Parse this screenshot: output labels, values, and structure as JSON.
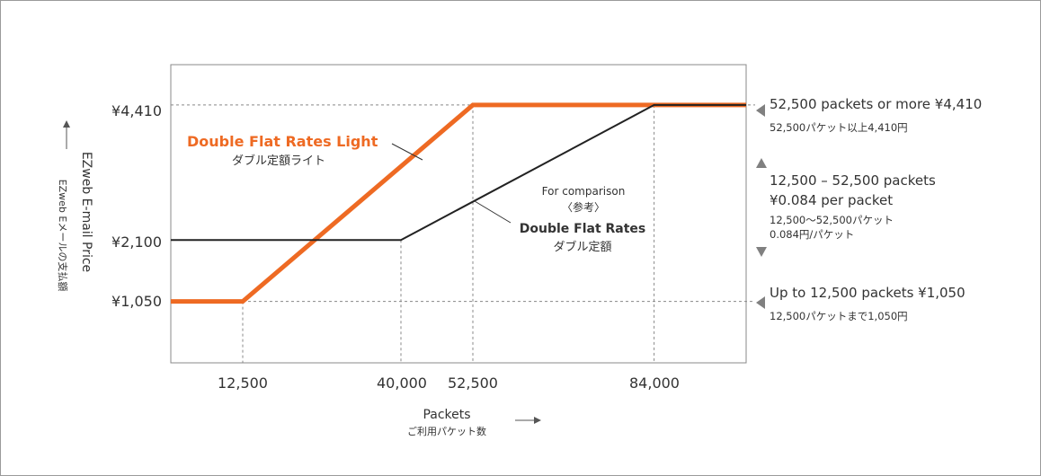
{
  "chart_data": {
    "type": "line",
    "x_axis": {
      "label": "Packets",
      "sublabel": "ご利用パケット数",
      "range": [
        0,
        100000
      ],
      "tick_labels": [
        "12,500",
        "40,000",
        "52,500",
        "84,000"
      ],
      "tick_values": [
        12500,
        40000,
        52500,
        84000
      ]
    },
    "y_axis": {
      "label": "EZweb E-mail Price",
      "sublabel": "EZweb Eメールの支払額",
      "range": [
        0,
        5100
      ],
      "tick_labels": [
        "¥1,050",
        "¥2,100",
        "¥4,410"
      ],
      "tick_values": [
        1050,
        2100,
        4410
      ]
    },
    "series": [
      {
        "name": "Double Flat Rates Light",
        "name_ja": "ダブル定額ライト",
        "color": "#ee6a23",
        "x": [
          0,
          12500,
          52500,
          100000
        ],
        "y": [
          1050,
          1050,
          4410,
          4410
        ]
      },
      {
        "name": "Double Flat Rates",
        "name_ja": "ダブル定額",
        "color": "#222222",
        "x": [
          0,
          40000,
          84000,
          100000
        ],
        "y": [
          2100,
          2100,
          4410,
          4410
        ]
      }
    ],
    "comparison_label": "For comparison",
    "comparison_label_ja": "〈参考〉",
    "annotations": {
      "top": {
        "en": "52,500 packets or more ¥4,410",
        "ja": "52,500パケット以上4,410円"
      },
      "middle": {
        "en1": "12,500 – 52,500 packets",
        "en2": "¥0.084 per packet",
        "ja1": "12,500〜52,500パケット",
        "ja2": "0.084円/パケット"
      },
      "bottom": {
        "en": "Up to 12,500 packets ¥1,050",
        "ja": "12,500パケットまで1,050円"
      }
    },
    "grid": "dashed-guides",
    "legend": "inline-labels"
  }
}
